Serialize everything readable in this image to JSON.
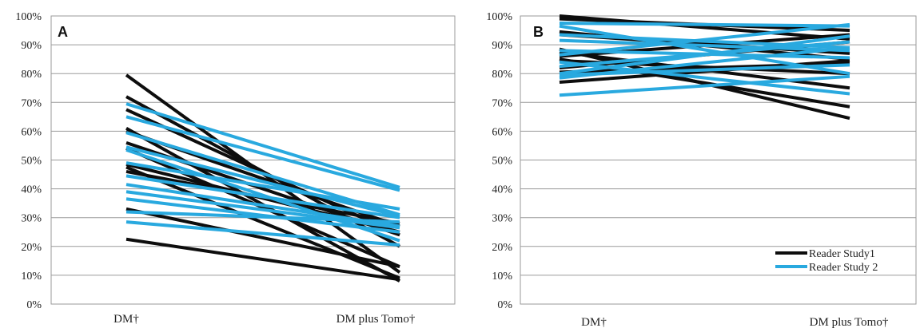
{
  "colors": {
    "study1": "#0d0d0d",
    "study2": "#29a9df",
    "grid": "#9a9a9a",
    "axis": "#7a7a7a"
  },
  "chart_data": [
    {
      "type": "line",
      "panel_label": "A",
      "categories": [
        "DM†",
        "DM plus Tomo†"
      ],
      "yticks": [
        "0%",
        "10%",
        "20%",
        "30%",
        "40%",
        "50%",
        "60%",
        "70%",
        "80%",
        "90%",
        "100%"
      ],
      "ylim": [
        0,
        100
      ],
      "grid": true,
      "legend": "none",
      "series": [
        {
          "name": "Reader Study1",
          "color_key": "study1",
          "readers": [
            [
              79.5,
              11.0
            ],
            [
              72.0,
              20.0
            ],
            [
              67.5,
              24.0
            ],
            [
              61.0,
              8.0
            ],
            [
              60.0,
              27.0
            ],
            [
              56.0,
              24.0
            ],
            [
              54.0,
              13.0
            ],
            [
              48.5,
              25.0
            ],
            [
              47.5,
              9.0
            ],
            [
              46.0,
              28.0
            ],
            [
              33.0,
              13.0
            ],
            [
              22.5,
              8.5
            ]
          ]
        },
        {
          "name": "Reader Study 2",
          "color_key": "study2",
          "readers": [
            [
              69.5,
              40.5
            ],
            [
              65.0,
              39.5
            ],
            [
              59.5,
              31.0
            ],
            [
              54.5,
              30.5
            ],
            [
              53.5,
              22.0
            ],
            [
              49.0,
              33.0
            ],
            [
              44.5,
              30.0
            ],
            [
              41.5,
              27.0
            ],
            [
              39.0,
              26.5
            ],
            [
              36.5,
              25.0
            ],
            [
              32.0,
              28.5
            ],
            [
              28.5,
              20.5
            ]
          ]
        }
      ]
    },
    {
      "type": "line",
      "panel_label": "B",
      "categories": [
        "DM†",
        "DM plus Tomo†"
      ],
      "yticks": [
        "0%",
        "10%",
        "20%",
        "30%",
        "40%",
        "50%",
        "60%",
        "70%",
        "80%",
        "90%",
        "100%"
      ],
      "ylim": [
        0,
        100
      ],
      "grid": true,
      "legend": "bottom-right",
      "series": [
        {
          "name": "Reader Study1",
          "color_key": "study1",
          "readers": [
            [
              100.0,
              92.0
            ],
            [
              99.0,
              95.0
            ],
            [
              94.5,
              85.0
            ],
            [
              93.5,
              87.0
            ],
            [
              88.5,
              64.5
            ],
            [
              87.5,
              75.0
            ],
            [
              86.0,
              93.5
            ],
            [
              85.0,
              68.5
            ],
            [
              84.5,
              80.0
            ],
            [
              82.0,
              91.0
            ],
            [
              80.5,
              83.5
            ],
            [
              77.0,
              84.5
            ]
          ]
        },
        {
          "name": "Reader Study 2",
          "color_key": "study2",
          "readers": [
            [
              97.5,
              96.5
            ],
            [
              96.5,
              80.0
            ],
            [
              93.5,
              89.0
            ],
            [
              91.5,
              88.0
            ],
            [
              88.0,
              85.5
            ],
            [
              86.5,
              97.0
            ],
            [
              84.0,
              73.0
            ],
            [
              82.5,
              91.0
            ],
            [
              80.0,
              93.0
            ],
            [
              79.5,
              83.0
            ],
            [
              78.5,
              89.0
            ],
            [
              72.5,
              79.0
            ]
          ]
        }
      ]
    }
  ]
}
